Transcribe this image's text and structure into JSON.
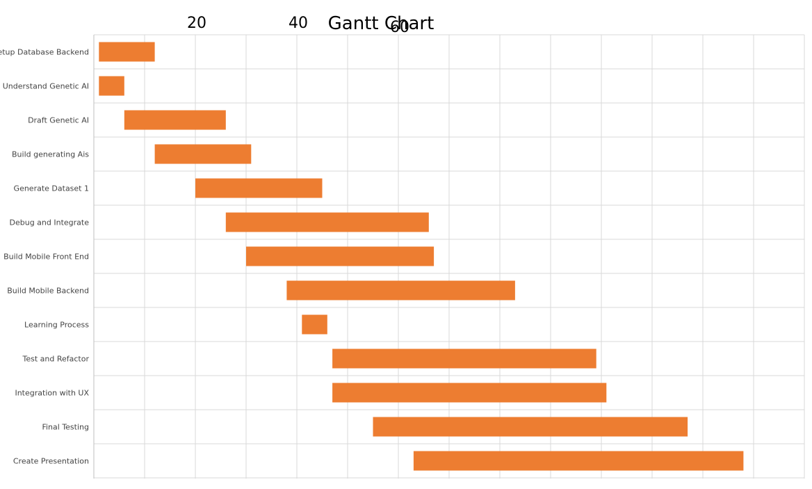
{
  "chart_data": {
    "type": "bar",
    "orientation": "horizontal",
    "title": "Gantt Chart",
    "xlabel": "",
    "ylabel": "",
    "x_tick_labels": [
      {
        "value": 20,
        "label": "20"
      },
      {
        "value": 40,
        "label": "40"
      },
      {
        "value": 60,
        "label": "60"
      }
    ],
    "xlim": [
      0,
      70
    ],
    "grid": true,
    "bar_color": "#ED7D31",
    "tasks": [
      {
        "name": "Setup Database Backend",
        "start": 1,
        "end": 12
      },
      {
        "name": "Understand Genetic AI",
        "start": 1,
        "end": 6
      },
      {
        "name": "Draft Genetic AI",
        "start": 6,
        "end": 26
      },
      {
        "name": "Build generating Ais",
        "start": 12,
        "end": 31
      },
      {
        "name": "Generate Dataset 1",
        "start": 20,
        "end": 45
      },
      {
        "name": "Debug and Integrate",
        "start": 26,
        "end": 66
      },
      {
        "name": "Build Mobile Front End",
        "start": 30,
        "end": 67
      },
      {
        "name": "Build Mobile Backend",
        "start": 38,
        "end": 83
      },
      {
        "name": "Learning Process",
        "start": 41,
        "end": 46
      },
      {
        "name": "Test and Refactor",
        "start": 47,
        "end": 99
      },
      {
        "name": "Integration with UX",
        "start": 47,
        "end": 101
      },
      {
        "name": "Final Testing",
        "start": 55,
        "end": 117
      },
      {
        "name": "Create Presentation",
        "start": 63,
        "end": 128
      }
    ]
  }
}
